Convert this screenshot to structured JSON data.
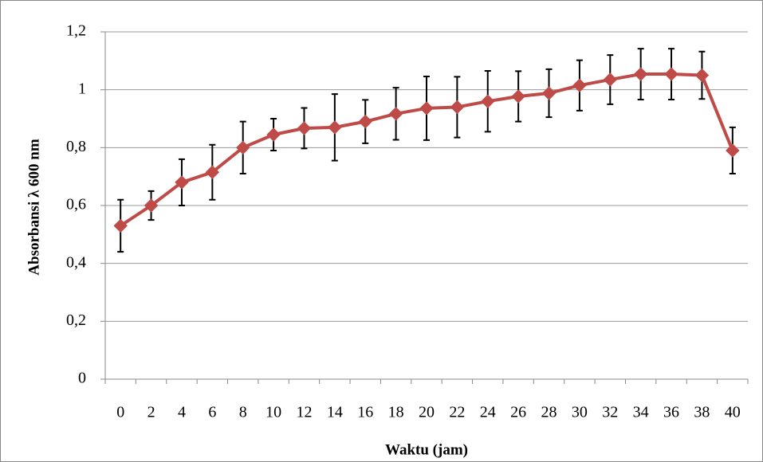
{
  "chart_data": {
    "type": "line",
    "x_label": "Waktu (jam)",
    "y_label": "Absorbansi λ 600 nm",
    "categories": [
      "0",
      "2",
      "4",
      "6",
      "8",
      "10",
      "12",
      "14",
      "16",
      "18",
      "20",
      "22",
      "24",
      "26",
      "28",
      "30",
      "32",
      "34",
      "36",
      "38",
      "40"
    ],
    "values": [
      0.53,
      0.6,
      0.68,
      0.715,
      0.8,
      0.845,
      0.867,
      0.87,
      0.89,
      0.917,
      0.936,
      0.94,
      0.96,
      0.977,
      0.988,
      1.015,
      1.035,
      1.054,
      1.054,
      1.05,
      0.79
    ],
    "errors": [
      0.09,
      0.05,
      0.08,
      0.095,
      0.09,
      0.055,
      0.07,
      0.115,
      0.075,
      0.09,
      0.11,
      0.105,
      0.105,
      0.087,
      0.083,
      0.087,
      0.085,
      0.088,
      0.088,
      0.082,
      0.08
    ],
    "color": "#be4b48",
    "error_color": "#000000",
    "ylim": [
      0,
      1.2
    ],
    "yticks": [
      0,
      {
        "value": 0.2,
        "label": "0,2"
      },
      {
        "value": 0.4,
        "label": "0,4"
      },
      {
        "value": 0.6,
        "label": "0,6"
      },
      {
        "value": 0.8,
        "label": "0,8"
      },
      1,
      {
        "value": 1.2,
        "label": "1,2"
      }
    ],
    "grid": true
  }
}
